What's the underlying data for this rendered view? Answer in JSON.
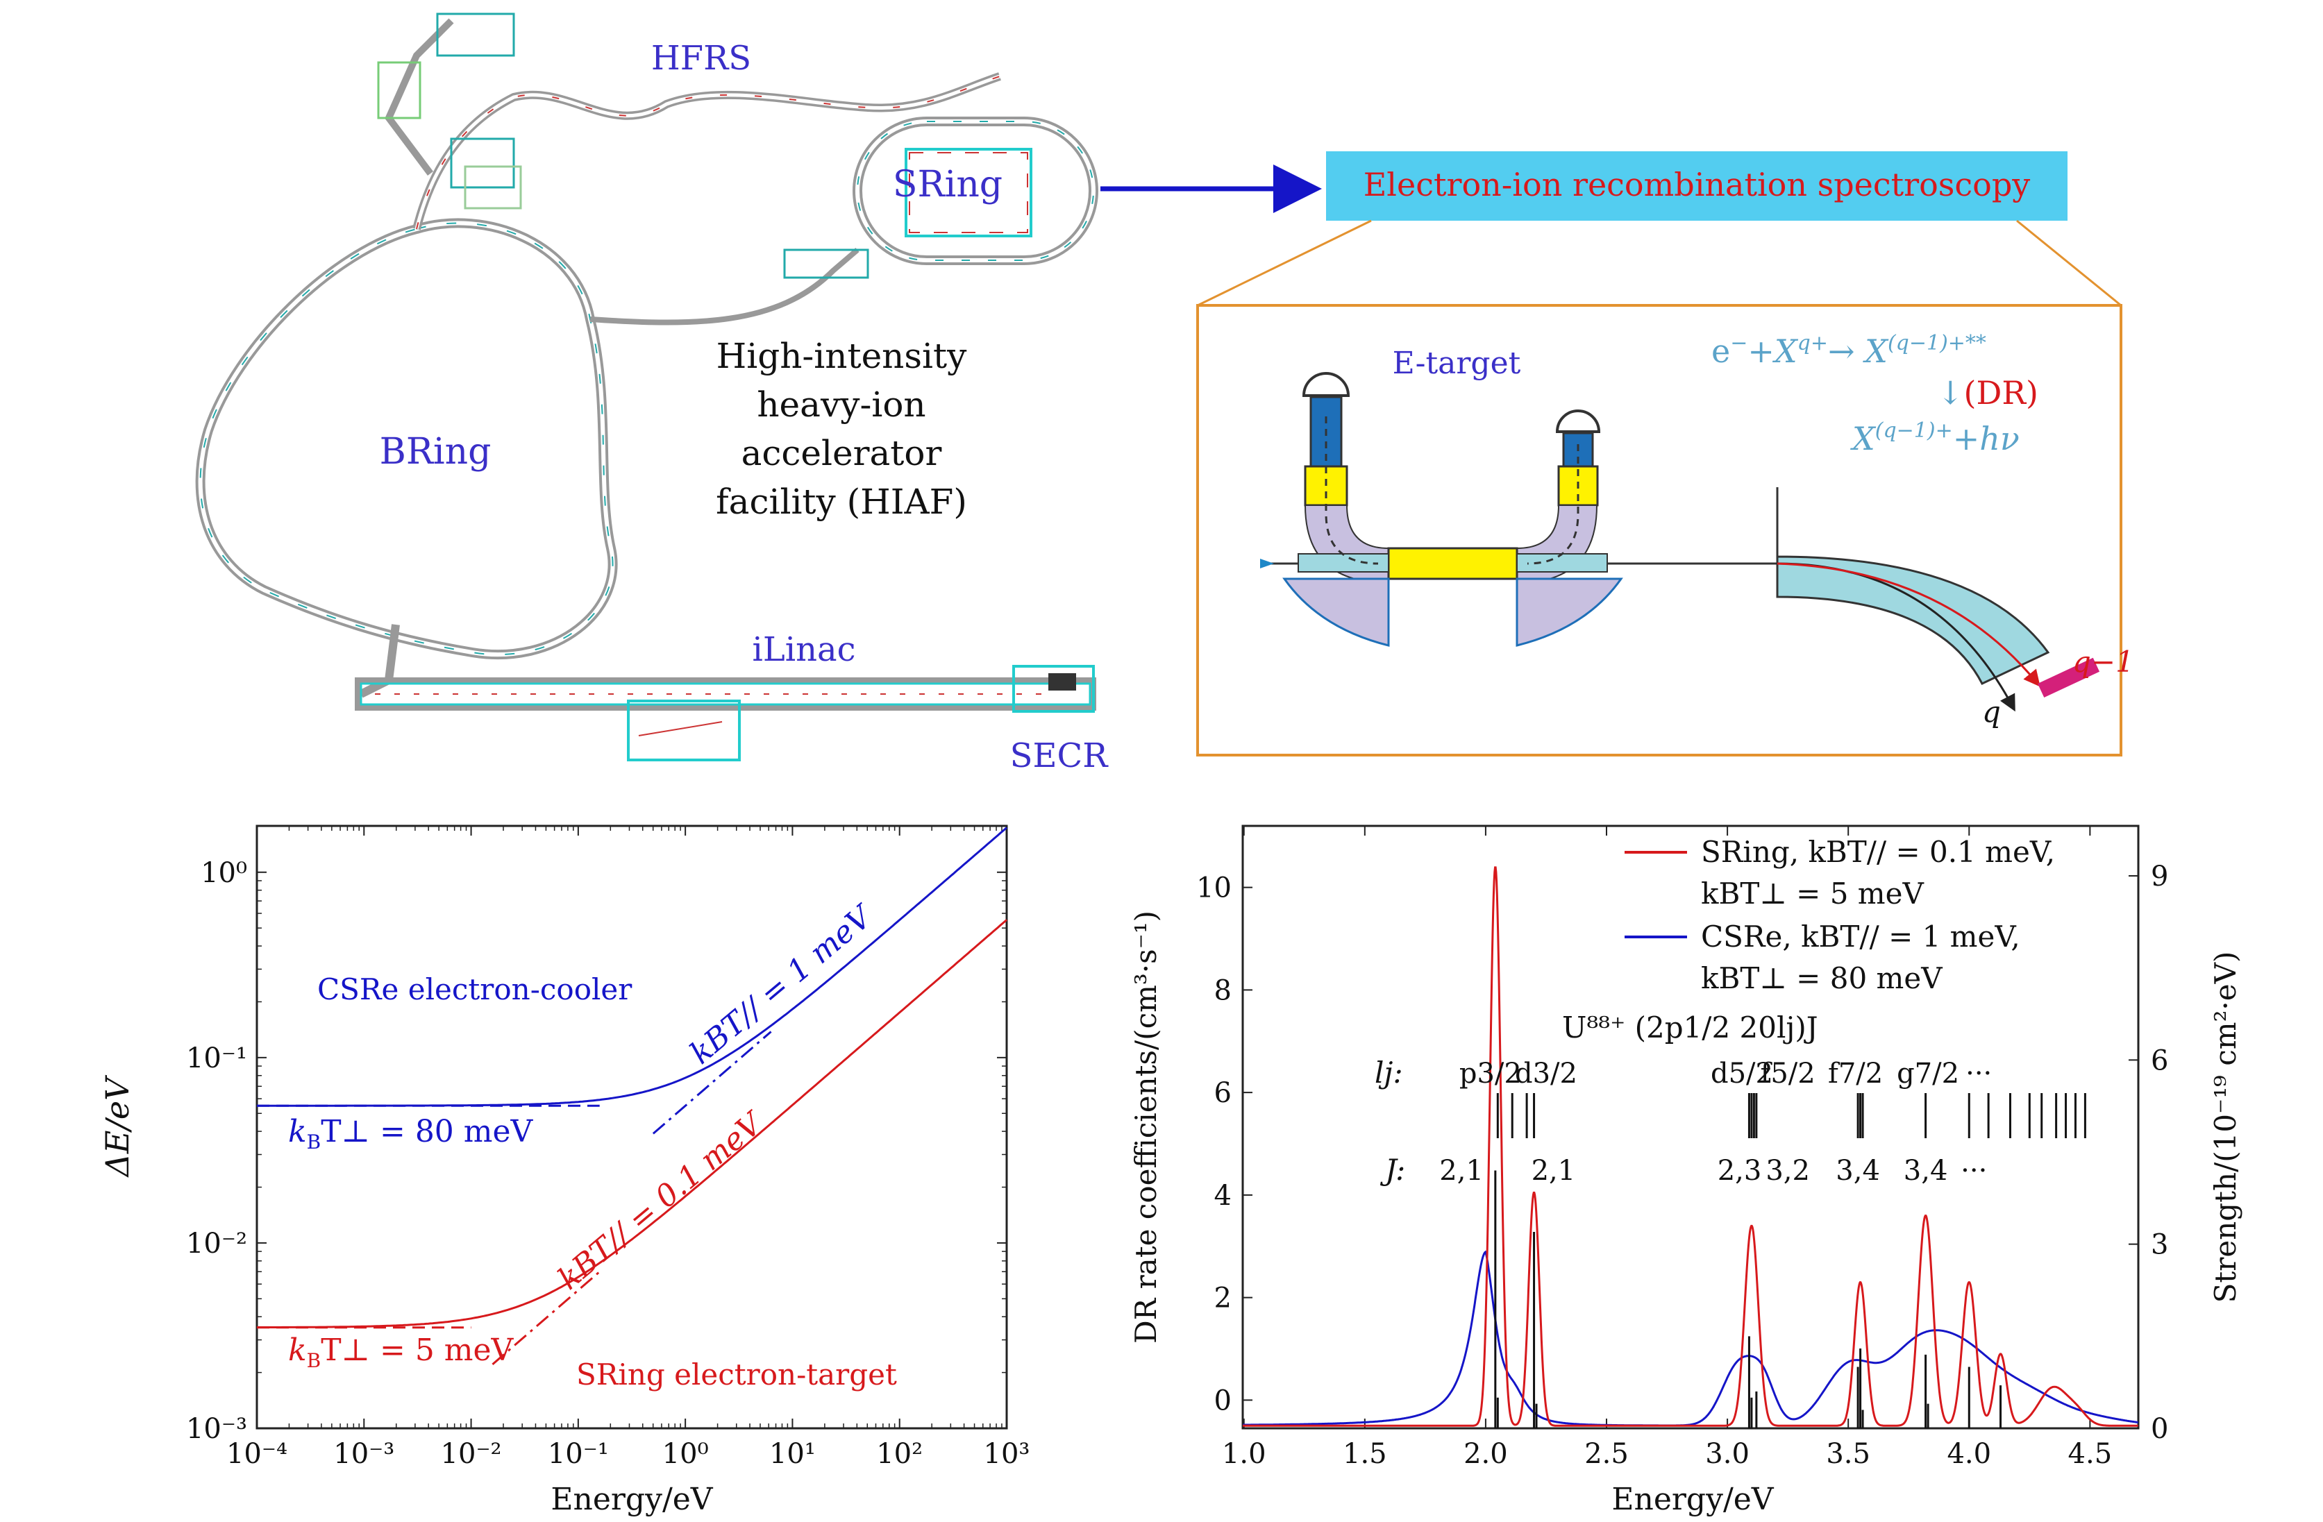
{
  "facility": {
    "hfrs": "HFRS",
    "sring": "SRing",
    "bring": "BRing",
    "ilinac": "iLinac",
    "secr": "SECR",
    "title_lines": [
      "High-intensity",
      "heavy-ion",
      "accelerator",
      "facility (HIAF)"
    ]
  },
  "spectroscopy_box": {
    "label": "Electron-ion recombination spectroscopy",
    "etarget": "E-target",
    "eq_line1_a": "e",
    "eq_line1_b": "+X",
    "eq_line1_c": "→ X",
    "eq_line1_d": "**",
    "eq_line2": "↓(DR)",
    "eq_line3_a": "X",
    "eq_line3_b": "+hν",
    "q_minus_1": "q−1",
    "q": "q"
  },
  "left_plot": {
    "ylabel": "ΔE/eV",
    "xlabel": "Energy/eV",
    "xticks": [
      "10⁻⁴",
      "10⁻³",
      "10⁻²",
      "10⁻¹",
      "10⁰",
      "10¹",
      "10²",
      "10³"
    ],
    "yticks": [
      "10⁰",
      "10⁻¹",
      "10⁻²",
      "10⁻³"
    ],
    "csre_label": "CSRe electron-cooler",
    "csre_perp": "k",
    "csre_perp_sub": "B",
    "csre_perp_rest": "T⊥ = 80 meV",
    "csre_par": "kBT// = 1 meV",
    "sring_label": "SRing electron-target",
    "sring_perp": "k",
    "sring_perp_sub": "B",
    "sring_perp_rest": "T⊥ = 5 meV",
    "sring_par": "kBT// = 0.1 meV"
  },
  "right_plot": {
    "ylabel_left": "DR rate coefficients/(cm³·s⁻¹)",
    "ylabel_right": "Strength/(10⁻¹⁹ cm²·eV)",
    "xlabel": "Energy/eV",
    "xticks": [
      "1.0",
      "1.5",
      "2.0",
      "2.5",
      "3.0",
      "3.5",
      "4.0",
      "4.5"
    ],
    "yticks_left": [
      "0",
      "2",
      "4",
      "6",
      "8",
      "10"
    ],
    "yticks_right": [
      "0",
      "3",
      "6",
      "9"
    ],
    "legend_sring_1": "SRing, kBT// = 0.1 meV,",
    "legend_sring_2": "kBT⊥ = 5 meV",
    "legend_csre_1": "CSRe, kBT// = 1 meV,",
    "legend_csre_2": "kBT⊥ = 80 meV",
    "config_label": "U⁸⁸⁺ (2p1/2 20lj)J",
    "lj_label": "lj:",
    "lj_values": [
      "p3/2",
      "d3/2",
      "d5/2",
      "f5/2",
      "f7/2",
      "g7/2",
      "···"
    ],
    "J_label": "J:",
    "J_values": [
      "2,1",
      "2,1",
      "2,3",
      "3,2",
      "3,4",
      "3,4",
      "···"
    ]
  },
  "colors": {
    "sring_red": "#d7191c",
    "csre_blue": "#1515c8",
    "label_blue": "#3a2fc8",
    "box_cyan": "#53cdf0",
    "box_orange": "#e3922f",
    "light_blue_text": "#5ba3c9",
    "magnet_purple": "#c8c0e0",
    "dipole_cyan": "#9fd8e0",
    "yellow": "#fff200"
  }
}
